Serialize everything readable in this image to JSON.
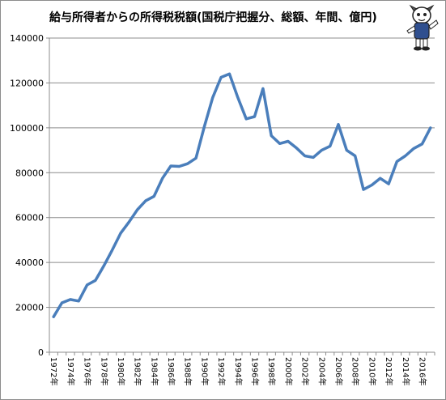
{
  "chart_data": {
    "type": "line",
    "title": "給与所得者からの所得税税額(国税庁把握分、総額、年間、億円)",
    "xlabel": "",
    "ylabel": "",
    "ylim": [
      0,
      140000
    ],
    "yticks": [
      0,
      20000,
      40000,
      60000,
      80000,
      100000,
      120000,
      140000
    ],
    "ytick_labels": [
      "0",
      "20000",
      "40000",
      "60000",
      "80000",
      "100000",
      "120000",
      "140000"
    ],
    "grid": true,
    "legend": "none",
    "series_color": "#4a7ebb",
    "x": [
      "1972年",
      "1973年",
      "1974年",
      "1975年",
      "1976年",
      "1977年",
      "1978年",
      "1979年",
      "1980年",
      "1981年",
      "1982年",
      "1983年",
      "1984年",
      "1985年",
      "1986年",
      "1987年",
      "1988年",
      "1989年",
      "1990年",
      "1991年",
      "1992年",
      "1993年",
      "1994年",
      "1995年",
      "1996年",
      "1997年",
      "1998年",
      "1999年",
      "2000年",
      "2001年",
      "2002年",
      "2003年",
      "2004年",
      "2005年",
      "2006年",
      "2007年",
      "2008年",
      "2009年",
      "2010年",
      "2011年",
      "2012年",
      "2013年",
      "2014年",
      "2015年",
      "2016年",
      "2017年"
    ],
    "xtick_labels": [
      "1972年",
      "1974年",
      "1976年",
      "1978年",
      "1980年",
      "1982年",
      "1984年",
      "1986年",
      "1988年",
      "1990年",
      "1992年",
      "1994年",
      "1996年",
      "1998年",
      "2000年",
      "2002年",
      "2004年",
      "2006年",
      "2008年",
      "2010年",
      "2012年",
      "2014年",
      "2016年"
    ],
    "series": [
      {
        "values": [
          15800,
          22000,
          23500,
          22800,
          30000,
          32000,
          38500,
          45500,
          53000,
          58000,
          63500,
          67500,
          69500,
          77500,
          83000,
          82800,
          84000,
          86500,
          100500,
          113500,
          122500,
          124000,
          113500,
          104000,
          105000,
          117500,
          96500,
          93000,
          94000,
          91000,
          87500,
          86800,
          90000,
          91800,
          101500,
          90000,
          87500,
          72500,
          74500,
          77500,
          75000,
          85000,
          87500,
          90800,
          92800,
          100000
        ]
      }
    ]
  }
}
